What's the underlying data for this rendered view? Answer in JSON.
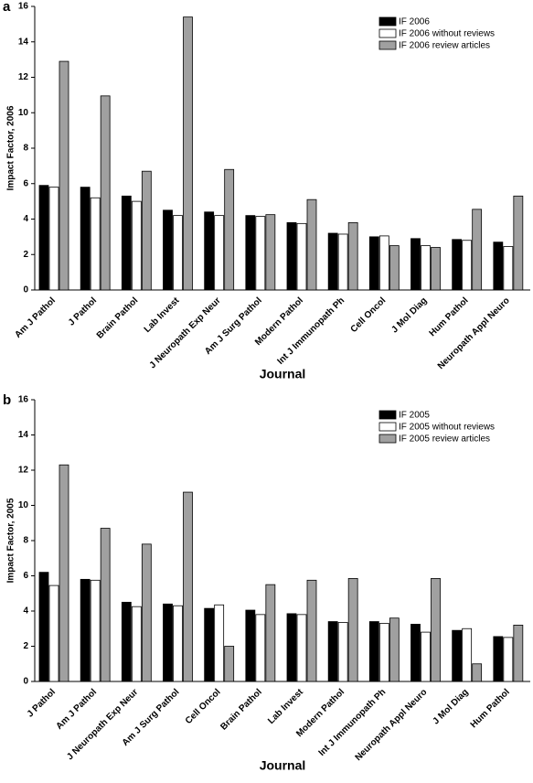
{
  "chart_data": [
    {
      "type": "bar",
      "panel_label": "a",
      "ylabel": "Impact Factor, 2006",
      "xlabel": "Journal",
      "categories": [
        "Am J Pathol",
        "J Pathol",
        "Brain Pathol",
        "Lab Invest",
        "J Neuropath Exp Neur",
        "Am J Surg Pathol",
        "Modern Pathol",
        "Int J Immunopath Ph",
        "Cell Oncol",
        "J Mol Diag",
        "Hum Pathol",
        "Neuropath Appl Neuro"
      ],
      "series": [
        {
          "name": "IF 2006",
          "color": "#000000",
          "values": [
            5.9,
            5.8,
            5.3,
            4.5,
            4.4,
            4.2,
            3.8,
            3.2,
            3.0,
            2.9,
            2.85,
            2.7
          ]
        },
        {
          "name": "IF 2006 without reviews",
          "color": "#ffffff",
          "values": [
            5.8,
            5.2,
            5.0,
            4.2,
            4.2,
            4.15,
            3.75,
            3.15,
            3.05,
            2.5,
            2.8,
            2.45
          ]
        },
        {
          "name": "IF 2006 review articles",
          "color": "#a0a0a0",
          "values": [
            12.9,
            10.95,
            6.7,
            15.4,
            6.8,
            4.25,
            5.1,
            3.8,
            2.5,
            2.4,
            4.55,
            5.3
          ]
        }
      ],
      "ylim": [
        0,
        16
      ],
      "yticks": [
        0,
        2,
        4,
        6,
        8,
        10,
        12,
        14,
        16
      ],
      "legend": "upper right"
    },
    {
      "type": "bar",
      "panel_label": "b",
      "ylabel": "Impact Factor, 2005",
      "xlabel": "Journal",
      "categories": [
        "J Pathol",
        "Am J Pathol",
        "J Neuropath Exp Neur",
        "Am J Surg Pathol",
        "Cell Oncol",
        "Brain Pathol",
        "Lab Invest",
        "Modern Pathol",
        "Int J Immunopath Ph",
        "Neuropath Appl Neuro",
        "J Mol Diag",
        "Hum Pathol"
      ],
      "series": [
        {
          "name": "IF 2005",
          "color": "#000000",
          "values": [
            6.2,
            5.8,
            4.5,
            4.4,
            4.15,
            4.05,
            3.85,
            3.4,
            3.4,
            3.25,
            2.9,
            2.55
          ]
        },
        {
          "name": "IF 2005 without reviews",
          "color": "#ffffff",
          "values": [
            5.45,
            5.75,
            4.25,
            4.3,
            4.35,
            3.8,
            3.8,
            3.35,
            3.3,
            2.8,
            3.0,
            2.5
          ]
        },
        {
          "name": "IF 2005 review articles",
          "color": "#a0a0a0",
          "values": [
            12.3,
            8.7,
            7.8,
            10.75,
            2.0,
            5.5,
            5.75,
            5.85,
            3.6,
            5.85,
            1.0,
            3.2
          ]
        }
      ],
      "ylim": [
        0,
        16
      ],
      "yticks": [
        0,
        2,
        4,
        6,
        8,
        10,
        12,
        14,
        16
      ],
      "legend": "upper right"
    }
  ]
}
